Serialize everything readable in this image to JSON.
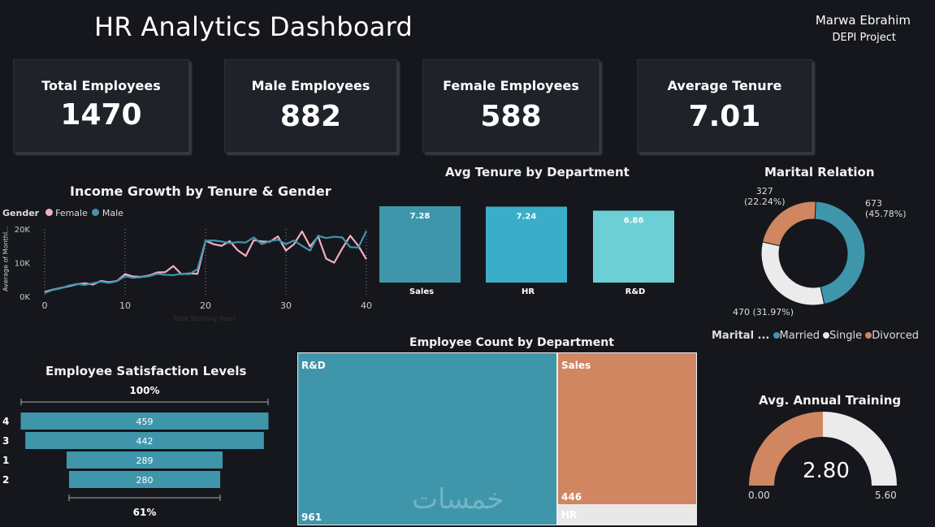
{
  "header": {
    "title": "HR  Analytics Dashboard",
    "author": "Marwa Ebrahim",
    "project": "DEPI Project"
  },
  "kpis": [
    {
      "label": "Total Employees",
      "value": "1470"
    },
    {
      "label": "Male Employees",
      "value": "882"
    },
    {
      "label": "Female Employees",
      "value": "588"
    },
    {
      "label": "Average Tenure",
      "value": "7.01"
    }
  ],
  "colors": {
    "teal": "#3f96ab",
    "teal2": "#3aaec9",
    "teal3": "#6ccfd6",
    "female": "#f2aec6",
    "orange": "#d08661",
    "light": "#ebebeb",
    "panel": "#1f2229"
  },
  "income_chart": {
    "legend_title": "Gender",
    "legend_female": "Female",
    "legend_male": "Male",
    "y_axis_label": "Average of MonthI..."
  },
  "satisfaction_chart": {
    "top_pct": "100%",
    "bottom_pct": "61%"
  },
  "marital_chart": {
    "legend_title": "Marital ...",
    "legend_items": [
      "Married",
      "Single",
      "Divorced"
    ],
    "labels": {
      "married_count": "673",
      "married_pct": "(45.78%)",
      "divorced_count": "327",
      "divorced_pct": "(22.24%)",
      "single": "470 (31.97%)"
    }
  },
  "training_gauge": {
    "title": "Avg. Annual Training",
    "value_label": "2.80",
    "min_label": "0.00",
    "max_label": "5.60"
  },
  "treemap": {
    "title": "Employee Count by Department",
    "rd_label": "R&D",
    "rd_value": "961",
    "sales_label": "Sales",
    "sales_value": "446",
    "hr_label": "HR"
  },
  "watermark": "خمسات",
  "chart_data": [
    {
      "type": "line",
      "title": "Income Growth by Tenure & Gender",
      "xlabel": "Total Working Years",
      "ylabel": "Average of MonthlyIncome",
      "x_ticks": [
        "0",
        "10",
        "20",
        "30",
        "40"
      ],
      "y_ticks": [
        "0K",
        "10K",
        "20K"
      ],
      "xlim": [
        0,
        40
      ],
      "ylim": [
        0,
        20000
      ],
      "x": [
        0,
        1,
        2,
        3,
        4,
        5,
        6,
        7,
        8,
        9,
        10,
        11,
        12,
        13,
        14,
        15,
        16,
        17,
        18,
        19,
        20,
        21,
        22,
        23,
        24,
        25,
        26,
        27,
        28,
        29,
        30,
        31,
        32,
        33,
        34,
        35,
        36,
        37,
        38,
        39,
        40
      ],
      "series": [
        {
          "name": "Female",
          "values": [
            1300,
            2000,
            2500,
            3000,
            3600,
            3900,
            3500,
            4600,
            4200,
            4600,
            6600,
            5900,
            5800,
            6200,
            7100,
            7200,
            9000,
            6600,
            6800,
            6700,
            16500,
            15500,
            15000,
            16400,
            13700,
            12000,
            16700,
            16300,
            16200,
            17800,
            13600,
            15500,
            19300,
            14800,
            17800,
            11200,
            10000,
            14200,
            18000,
            15000,
            11000
          ]
        },
        {
          "name": "Male",
          "values": [
            1000,
            1900,
            2400,
            3200,
            3700,
            3400,
            3900,
            4400,
            4000,
            4500,
            6000,
            5500,
            5700,
            6000,
            6700,
            6400,
            6300,
            6700,
            6600,
            8100,
            16500,
            16600,
            16300,
            15800,
            16100,
            16000,
            17500,
            15500,
            16400,
            16800,
            15500,
            16600,
            15000,
            13600,
            18000,
            17300,
            17700,
            17500,
            14600,
            14500,
            19400
          ]
        }
      ]
    },
    {
      "type": "bar",
      "title": "Avg Tenure by Department",
      "categories": [
        "Sales",
        "HR",
        "R&D"
      ],
      "values": [
        7.28,
        7.24,
        6.86
      ],
      "value_labels": [
        "7.28",
        "7.24",
        "6.86"
      ]
    },
    {
      "type": "pie",
      "title": "Marital Relation",
      "categories": [
        "Married",
        "Single",
        "Divorced"
      ],
      "values": [
        673,
        470,
        327
      ],
      "percents": [
        45.78,
        31.97,
        22.24
      ]
    },
    {
      "type": "bar",
      "title": "Employee Satisfaction Levels",
      "categories": [
        "4",
        "3",
        "1",
        "2"
      ],
      "values": [
        459,
        442,
        289,
        280
      ],
      "value_labels": [
        "459",
        "442",
        "289",
        "280"
      ]
    },
    {
      "type": "heatmap",
      "title": "Employee Count by Department",
      "categories": [
        "R&D",
        "Sales",
        "HR"
      ],
      "values": [
        961,
        446,
        63
      ]
    },
    {
      "type": "pie",
      "title": "Avg. Annual Training",
      "values": [
        2.8
      ],
      "min": 0,
      "max": 5.6
    }
  ]
}
